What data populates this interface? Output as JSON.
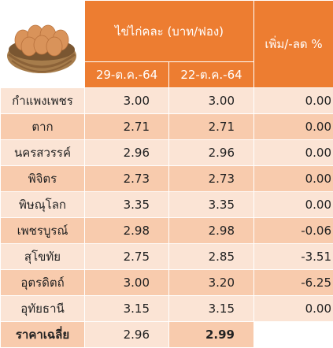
{
  "header": {
    "title": "ไข่ไก่คละ (บาท/ฟอง)",
    "change": "เพิ่ม/-ลด %",
    "dates": [
      "29-ต.ค.-64",
      "22-ต.ค.-64"
    ]
  },
  "table": {
    "rows": [
      [
        "กำแพงเพชร",
        "3.00",
        "3.00",
        "0.00"
      ],
      [
        "ตาก",
        "2.71",
        "2.71",
        "0.00"
      ],
      [
        "นครสวรรค์",
        "2.96",
        "2.96",
        "0.00"
      ],
      [
        "พิจิตร",
        "2.73",
        "2.73",
        "0.00"
      ],
      [
        "พิษณุโลก",
        "3.35",
        "3.35",
        "0.00"
      ],
      [
        "เพชรบูรณ์",
        "2.98",
        "2.98",
        "-0.06"
      ],
      [
        "สุโขทัย",
        "2.75",
        "2.85",
        "-3.51"
      ],
      [
        "อุตรดิตถ์",
        "3.00",
        "3.20",
        "-6.25"
      ],
      [
        "อุทัยธานี",
        "3.15",
        "3.15",
        "0.00"
      ]
    ]
  },
  "footer": {
    "label": "ราคาเฉลี่ย",
    "values": [
      "2.96",
      "2.99"
    ]
  }
}
